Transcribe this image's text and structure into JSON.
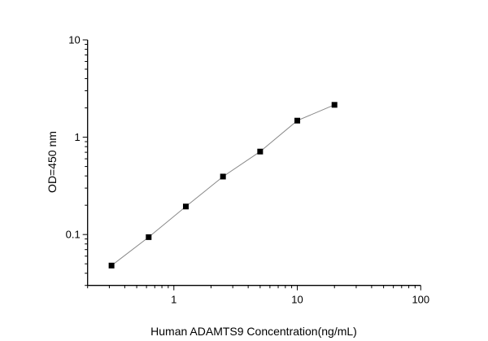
{
  "chart_data": {
    "type": "line",
    "title": "",
    "xlabel": "Human ADAMTS9 Concentration(ng/mL)",
    "ylabel": "OD=450 nm",
    "x_scale": "log",
    "y_scale": "log",
    "xlim": [
      0.2,
      100
    ],
    "ylim": [
      0.03,
      10
    ],
    "x_ticks": [
      "1",
      "10",
      "100"
    ],
    "y_ticks": [
      "0.1",
      "1",
      "10"
    ],
    "grid": false,
    "legend": "none",
    "series": [
      {
        "x": [
          0.3125,
          0.625,
          1.25,
          2.5,
          5,
          10,
          20
        ],
        "y": [
          0.048,
          0.094,
          0.194,
          0.394,
          0.712,
          1.48,
          2.15
        ],
        "marker": "square",
        "marker_color": "#000000",
        "line_color": "#888888"
      }
    ]
  }
}
